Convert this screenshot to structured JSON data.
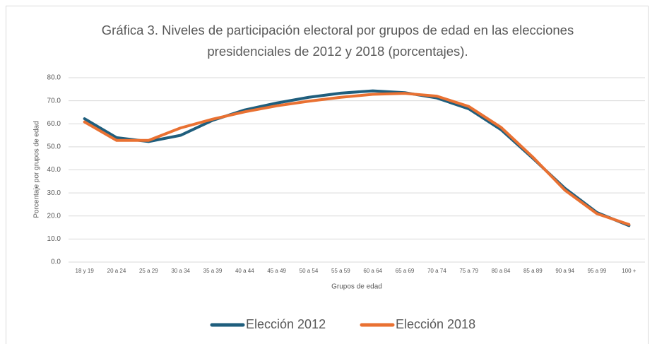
{
  "chart_data": {
    "type": "line",
    "title": "Gráfica 3. Niveles de participación electoral por grupos de edad en las elecciones presidenciales de 2012 y 2018 (porcentajes).",
    "title_lines": [
      "Gráfica 3. Niveles de participación electoral por grupos de edad en las elecciones",
      "presidenciales de 2012 y 2018 (porcentajes)."
    ],
    "x_label": "Grupos de edad",
    "y_label": "Porcentaje por grupos de edad",
    "categories": [
      "18 y 19",
      "20 a 24",
      "25 a 29",
      "30 a 34",
      "35 a 39",
      "40 a 44",
      "45 a 49",
      "50 a 54",
      "55 a 59",
      "60 a 64",
      "65 a 69",
      "70 a 74",
      "75 a 79",
      "80 a 84",
      "85 a 89",
      "90 a 94",
      "95 a 99",
      "100 +"
    ],
    "series": [
      {
        "name": "Elección 2012",
        "color": "#1f5e7d",
        "values": [
          62.2,
          54.0,
          52.3,
          55.0,
          61.5,
          66.0,
          69.0,
          71.5,
          73.3,
          74.3,
          73.5,
          71.2,
          66.5,
          57.5,
          45.0,
          32.0,
          21.5,
          15.8
        ]
      },
      {
        "name": "Elección 2018",
        "color": "#e97132",
        "values": [
          60.8,
          52.8,
          52.8,
          58.2,
          62.0,
          65.2,
          67.8,
          69.8,
          71.5,
          72.8,
          73.2,
          72.0,
          67.5,
          58.5,
          45.5,
          31.2,
          21.0,
          16.3
        ]
      }
    ],
    "ylim": [
      0,
      80
    ],
    "yticks": [
      {
        "value": 0,
        "label": "0.0"
      },
      {
        "value": 10,
        "label": "10.0"
      },
      {
        "value": 20,
        "label": "20.0"
      },
      {
        "value": 30,
        "label": "30.0"
      },
      {
        "value": 40,
        "label": "40.0"
      },
      {
        "value": 50,
        "label": "50.0"
      },
      {
        "value": 60,
        "label": "60.0"
      },
      {
        "value": 70,
        "label": "70.0"
      },
      {
        "value": 80,
        "label": "80.0"
      }
    ],
    "grid": true,
    "legend": "bottom"
  }
}
